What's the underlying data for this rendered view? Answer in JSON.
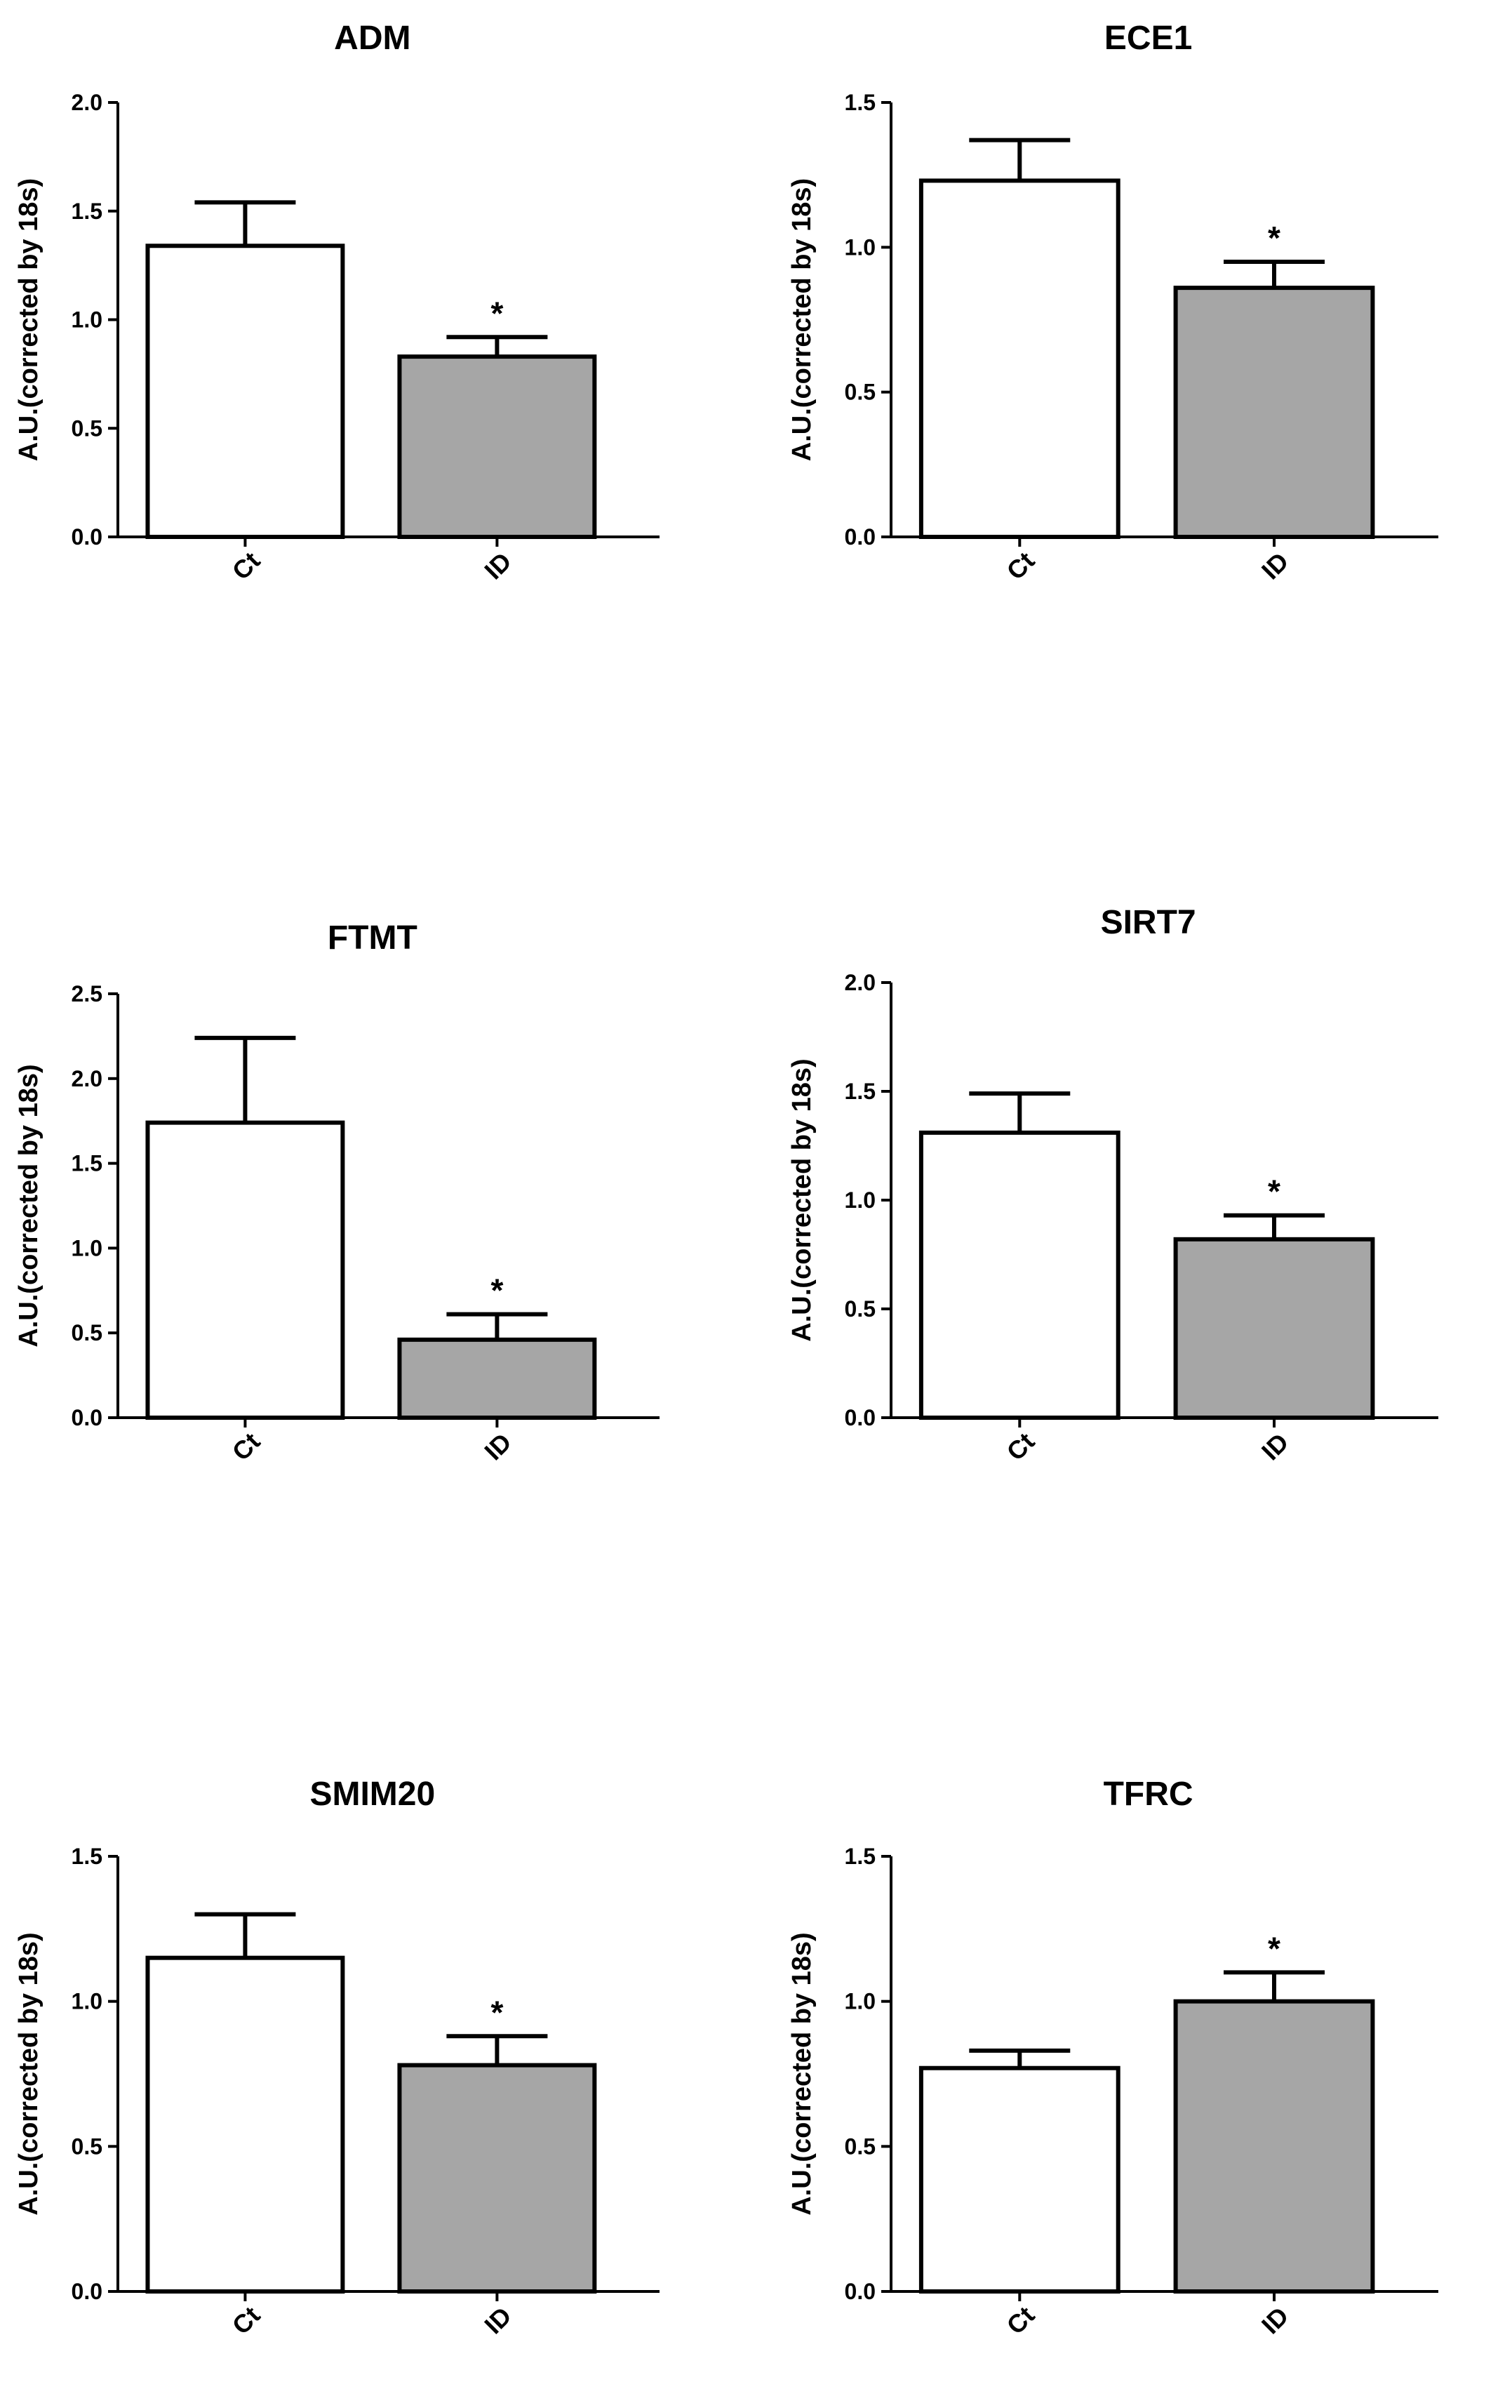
{
  "chart_data": [
    {
      "type": "bar",
      "title": "ADM",
      "ylabel": "A.U.(corrected by 18s)",
      "xlabel": "",
      "categories": [
        "Ct",
        "ID"
      ],
      "values": [
        1.34,
        0.83
      ],
      "errors": [
        0.2,
        0.09
      ],
      "significance": [
        "",
        "*"
      ],
      "ylim": [
        0,
        2.0
      ],
      "yticks": [
        "0.0",
        "0.5",
        "1.0",
        "1.5",
        "2.0"
      ],
      "bar_colors": [
        "#ffffff",
        "#a6a6a6"
      ]
    },
    {
      "type": "bar",
      "title": "ECE1",
      "ylabel": "A.U.(corrected by 18s)",
      "xlabel": "",
      "categories": [
        "Ct",
        "ID"
      ],
      "values": [
        1.23,
        0.86
      ],
      "errors": [
        0.14,
        0.09
      ],
      "significance": [
        "",
        "*"
      ],
      "ylim": [
        0,
        1.5
      ],
      "yticks": [
        "0.0",
        "0.5",
        "1.0",
        "1.5"
      ],
      "bar_colors": [
        "#ffffff",
        "#a6a6a6"
      ]
    },
    {
      "type": "bar",
      "title": "FTMT",
      "ylabel": "A.U.(corrected by 18s)",
      "xlabel": "",
      "categories": [
        "Ct",
        "ID"
      ],
      "values": [
        1.74,
        0.46
      ],
      "errors": [
        0.5,
        0.15
      ],
      "significance": [
        "",
        "*"
      ],
      "ylim": [
        0,
        2.5
      ],
      "yticks": [
        "0.0",
        "0.5",
        "1.0",
        "1.5",
        "2.0",
        "2.5"
      ],
      "bar_colors": [
        "#ffffff",
        "#a6a6a6"
      ]
    },
    {
      "type": "bar",
      "title": "SIRT7",
      "ylabel": "A.U.(corrected by 18s)",
      "xlabel": "",
      "categories": [
        "Ct",
        "ID"
      ],
      "values": [
        1.31,
        0.82
      ],
      "errors": [
        0.18,
        0.11
      ],
      "significance": [
        "",
        "*"
      ],
      "ylim": [
        0,
        2.0
      ],
      "yticks": [
        "0.0",
        "0.5",
        "1.0",
        "1.5",
        "2.0"
      ],
      "bar_colors": [
        "#ffffff",
        "#a6a6a6"
      ]
    },
    {
      "type": "bar",
      "title": "SMIM20",
      "ylabel": "A.U.(corrected by 18s)",
      "xlabel": "",
      "categories": [
        "Ct",
        "ID"
      ],
      "values": [
        1.15,
        0.78
      ],
      "errors": [
        0.15,
        0.1
      ],
      "significance": [
        "",
        "*"
      ],
      "ylim": [
        0,
        1.5
      ],
      "yticks": [
        "0.0",
        "0.5",
        "1.0",
        "1.5"
      ],
      "bar_colors": [
        "#ffffff",
        "#a6a6a6"
      ]
    },
    {
      "type": "bar",
      "title": "TFRC",
      "ylabel": "A.U.(corrected by 18s)",
      "xlabel": "",
      "categories": [
        "Ct",
        "ID"
      ],
      "values": [
        0.77,
        1.0
      ],
      "errors": [
        0.06,
        0.1
      ],
      "significance": [
        "",
        "*"
      ],
      "ylim": [
        0,
        1.5
      ],
      "yticks": [
        "0.0",
        "0.5",
        "1.0",
        "1.5"
      ],
      "bar_colors": [
        "#ffffff",
        "#a6a6a6"
      ]
    }
  ]
}
